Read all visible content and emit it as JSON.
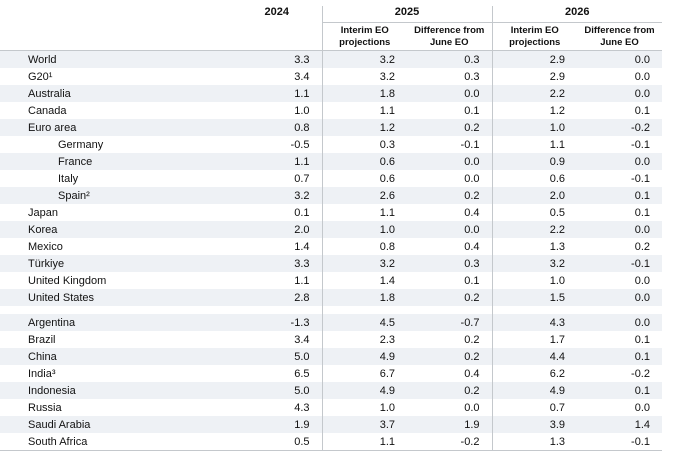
{
  "colors": {
    "row_stripe": "#eef1f5",
    "grid_line": "#c4c8cc"
  },
  "chart_data": {
    "type": "table",
    "title": "",
    "column_groups": [
      {
        "label": "2024",
        "sub": []
      },
      {
        "label": "2025",
        "sub": [
          "Interim EO projections",
          "Difference from June EO"
        ]
      },
      {
        "label": "2026",
        "sub": [
          "Interim EO projections",
          "Difference from June EO"
        ]
      }
    ],
    "row_groups": [
      {
        "rows": [
          {
            "label": "World",
            "indent": false,
            "values": [
              "3.3",
              "3.2",
              "0.3",
              "2.9",
              "0.0"
            ]
          },
          {
            "label": "G20¹",
            "indent": false,
            "values": [
              "3.4",
              "3.2",
              "0.3",
              "2.9",
              "0.0"
            ]
          },
          {
            "label": "Australia",
            "indent": false,
            "values": [
              "1.1",
              "1.8",
              "0.0",
              "2.2",
              "0.0"
            ]
          },
          {
            "label": "Canada",
            "indent": false,
            "values": [
              "1.0",
              "1.1",
              "0.1",
              "1.2",
              "0.1"
            ]
          },
          {
            "label": "Euro area",
            "indent": false,
            "values": [
              "0.8",
              "1.2",
              "0.2",
              "1.0",
              "-0.2"
            ]
          },
          {
            "label": "Germany",
            "indent": true,
            "values": [
              "-0.5",
              "0.3",
              "-0.1",
              "1.1",
              "-0.1"
            ]
          },
          {
            "label": "France",
            "indent": true,
            "values": [
              "1.1",
              "0.6",
              "0.0",
              "0.9",
              "0.0"
            ]
          },
          {
            "label": "Italy",
            "indent": true,
            "values": [
              "0.7",
              "0.6",
              "0.0",
              "0.6",
              "-0.1"
            ]
          },
          {
            "label": "Spain²",
            "indent": true,
            "values": [
              "3.2",
              "2.6",
              "0.2",
              "2.0",
              "0.1"
            ]
          },
          {
            "label": "Japan",
            "indent": false,
            "values": [
              "0.1",
              "1.1",
              "0.4",
              "0.5",
              "0.1"
            ]
          },
          {
            "label": "Korea",
            "indent": false,
            "values": [
              "2.0",
              "1.0",
              "0.0",
              "2.2",
              "0.0"
            ]
          },
          {
            "label": "Mexico",
            "indent": false,
            "values": [
              "1.4",
              "0.8",
              "0.4",
              "1.3",
              "0.2"
            ]
          },
          {
            "label": "Türkiye",
            "indent": false,
            "values": [
              "3.3",
              "3.2",
              "0.3",
              "3.2",
              "-0.1"
            ]
          },
          {
            "label": "United Kingdom",
            "indent": false,
            "values": [
              "1.1",
              "1.4",
              "0.1",
              "1.0",
              "0.0"
            ]
          },
          {
            "label": "United States",
            "indent": false,
            "values": [
              "2.8",
              "1.8",
              "0.2",
              "1.5",
              "0.0"
            ]
          }
        ]
      },
      {
        "rows": [
          {
            "label": "Argentina",
            "indent": false,
            "values": [
              "-1.3",
              "4.5",
              "-0.7",
              "4.3",
              "0.0"
            ]
          },
          {
            "label": "Brazil",
            "indent": false,
            "values": [
              "3.4",
              "2.3",
              "0.2",
              "1.7",
              "0.1"
            ]
          },
          {
            "label": "China",
            "indent": false,
            "values": [
              "5.0",
              "4.9",
              "0.2",
              "4.4",
              "0.1"
            ]
          },
          {
            "label": "India³",
            "indent": false,
            "values": [
              "6.5",
              "6.7",
              "0.4",
              "6.2",
              "-0.2"
            ]
          },
          {
            "label": "Indonesia",
            "indent": false,
            "values": [
              "5.0",
              "4.9",
              "0.2",
              "4.9",
              "0.1"
            ]
          },
          {
            "label": "Russia",
            "indent": false,
            "values": [
              "4.3",
              "1.0",
              "0.0",
              "0.7",
              "0.0"
            ]
          },
          {
            "label": "Saudi Arabia",
            "indent": false,
            "values": [
              "1.9",
              "3.7",
              "1.9",
              "3.9",
              "1.4"
            ]
          },
          {
            "label": "South Africa",
            "indent": false,
            "values": [
              "0.5",
              "1.1",
              "-0.2",
              "1.3",
              "-0.1"
            ]
          }
        ]
      }
    ]
  }
}
